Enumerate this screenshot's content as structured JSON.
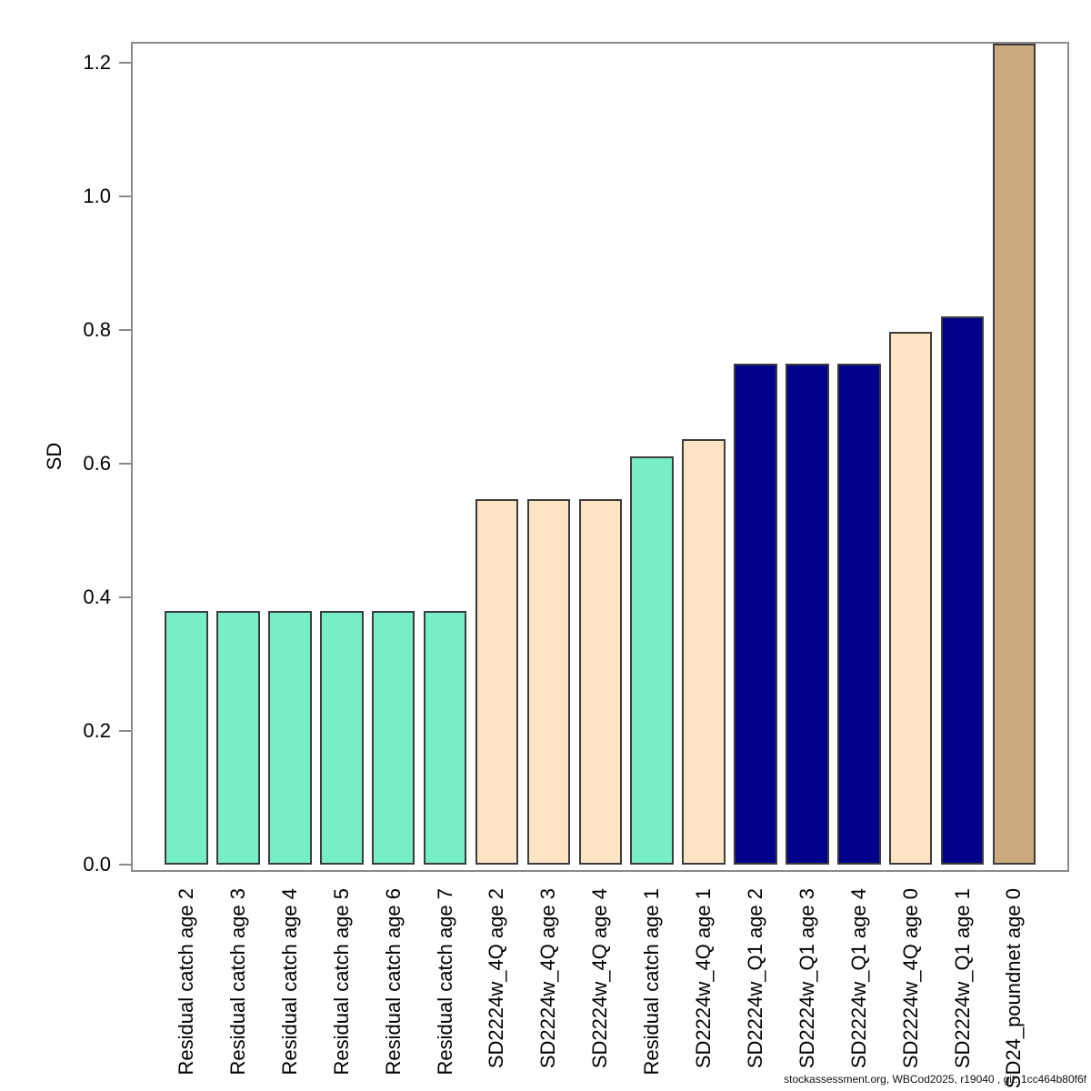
{
  "chart_data": {
    "type": "bar",
    "title": "",
    "xlabel": "",
    "ylabel": "SD",
    "ylim": [
      0,
      1.23
    ],
    "y_ticks": [
      0.0,
      0.2,
      0.4,
      0.6,
      0.8,
      1.0,
      1.2
    ],
    "y_tick_labels": [
      "0.0",
      "0.2",
      "0.4",
      "0.6",
      "0.8",
      "1.0",
      "1.2"
    ],
    "grid": false,
    "legend": "none",
    "categories": [
      "Residual catch age 2",
      "Residual catch age 3",
      "Residual catch age 4",
      "Residual catch age 5",
      "Residual catch age 6",
      "Residual catch age 7",
      "SD2224w_4Q age 2",
      "SD2224w_4Q age 3",
      "SD2224w_4Q age 4",
      "Residual catch age 1",
      "SD2224w_4Q age 1",
      "SD2224w_Q1 age 2",
      "SD2224w_Q1 age 3",
      "SD2224w_Q1 age 4",
      "SD2224w_4Q age 0",
      "SD2224w_Q1 age 1",
      "SD24_poundnet age 0"
    ],
    "values": [
      0.38,
      0.38,
      0.38,
      0.38,
      0.38,
      0.38,
      0.547,
      0.547,
      0.547,
      0.611,
      0.637,
      0.75,
      0.75,
      0.75,
      0.797,
      0.82,
      1.229
    ],
    "bar_groups": [
      "Residual catch",
      "Residual catch",
      "Residual catch",
      "Residual catch",
      "Residual catch",
      "Residual catch",
      "SD2224w_4Q",
      "SD2224w_4Q",
      "SD2224w_4Q",
      "Residual catch",
      "SD2224w_4Q",
      "SD2224w_Q1",
      "SD2224w_Q1",
      "SD2224w_Q1",
      "SD2224w_4Q",
      "SD2224w_Q1",
      "SD24_poundnet"
    ],
    "group_colors": {
      "Residual catch": "#76EEC6",
      "SD2224w_4Q": "#FFE4C4",
      "SD2224w_Q1": "#00008B",
      "SD24_poundnet": "#CDAA7D"
    }
  },
  "footer": {
    "text": "stockassessment.org, WBCod2025, r19040 , git: 1cc464b80f6f"
  }
}
